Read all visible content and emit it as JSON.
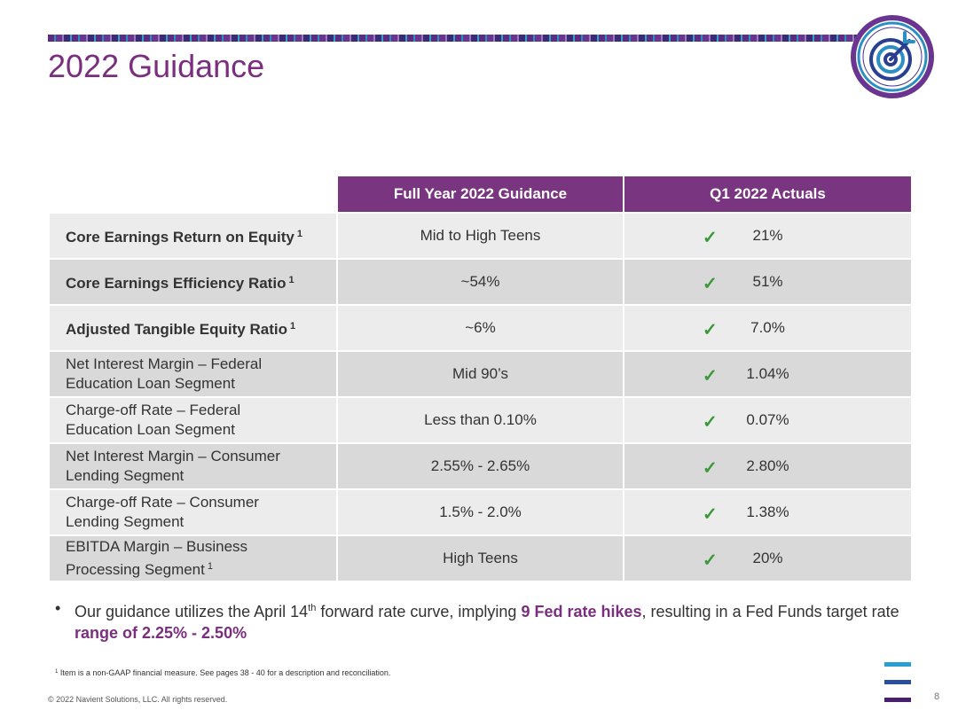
{
  "header": {
    "title": "2022 Guidance"
  },
  "table": {
    "columns": [
      "Full Year 2022 Guidance",
      "Q1 2022 Actuals"
    ],
    "rows": [
      {
        "metric_line1": "Core Earnings Return on Equity",
        "metric_line2": "",
        "sup": "1",
        "bold": true,
        "guidance": "Mid to High Teens",
        "actual": "21%",
        "check": "✓"
      },
      {
        "metric_line1": "Core Earnings Efficiency Ratio",
        "metric_line2": "",
        "sup": "1",
        "bold": true,
        "guidance": "~54%",
        "actual": "51%",
        "check": "✓"
      },
      {
        "metric_line1": "Adjusted Tangible Equity Ratio",
        "metric_line2": "",
        "sup": "1",
        "bold": true,
        "guidance": "~6%",
        "actual": "7.0%",
        "check": "✓"
      },
      {
        "metric_line1": "Net Interest Margin – Federal",
        "metric_line2": "Education Loan Segment",
        "sup": "",
        "bold": false,
        "guidance": "Mid 90’s",
        "actual": "1.04%",
        "check": "✓"
      },
      {
        "metric_line1": "Charge-off Rate – Federal",
        "metric_line2": "Education Loan Segment",
        "sup": "",
        "bold": false,
        "guidance": "Less than 0.10%",
        "actual": "0.07%",
        "check": "✓"
      },
      {
        "metric_line1": "Net Interest Margin – Consumer",
        "metric_line2": "Lending Segment",
        "sup": "",
        "bold": false,
        "guidance": "2.55% - 2.65%",
        "actual": "2.80%",
        "check": "✓"
      },
      {
        "metric_line1": "Charge-off Rate – Consumer",
        "metric_line2": "Lending Segment",
        "sup": "",
        "bold": false,
        "guidance": "1.5% - 2.0%",
        "actual": "1.38%",
        "check": "✓"
      },
      {
        "metric_line1": "EBITDA Margin – Business",
        "metric_line2": "Processing Segment",
        "sup": "1",
        "bold": false,
        "guidance": "High Teens",
        "actual": "20%",
        "check": "✓"
      }
    ]
  },
  "bullet": {
    "marker": "•",
    "part1": "Our guidance utilizes the April 14",
    "part1_sup": "th",
    "part2": " forward rate curve, implying ",
    "highlight1": "9 Fed rate hikes",
    "part3": ", resulting in a Fed Funds target rate ",
    "highlight2": "range of 2.25% - 2.50%"
  },
  "footnote": {
    "sup": "1",
    "text": " Item is a non-GAAP financial measure.  See pages 38 - 40  for a description and reconciliation."
  },
  "footer": {
    "copyright": "© 2022 Navient Solutions, LLC. All rights reserved.",
    "page_number": "8"
  },
  "colors": {
    "accent": "#7a3580",
    "title": "#7a2f7e",
    "check": "#3a9a3a",
    "row_light": "#ececec",
    "row_dark": "#d9d9d9"
  },
  "icons": {
    "logo": "target-icon",
    "corner_mark": "menu-bars-icon"
  }
}
